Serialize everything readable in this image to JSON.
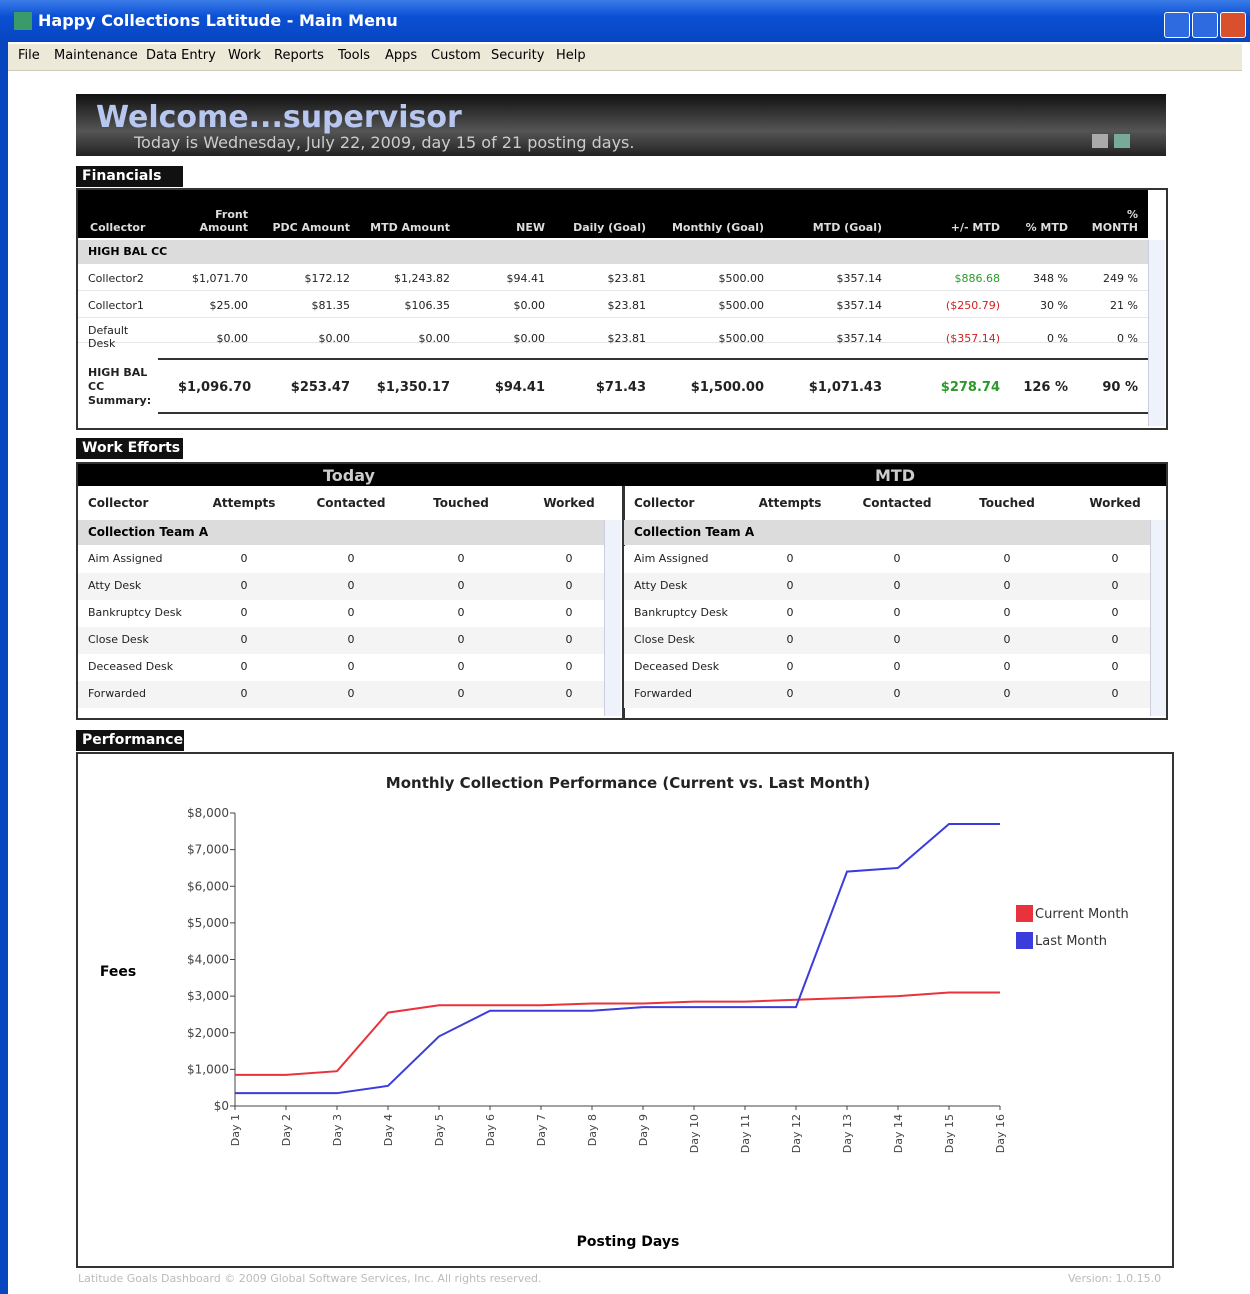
{
  "window": {
    "title": "Happy Collections  Latitude - Main Menu",
    "menu": [
      "File",
      "Maintenance",
      "Data Entry",
      "Work",
      "Reports",
      "Tools",
      "Apps",
      "Custom",
      "Security",
      "Help"
    ]
  },
  "welcome": {
    "title": "Welcome...supervisor",
    "subtitle": "Today is Wednesday, July 22, 2009, day 15 of 21 posting days."
  },
  "financials": {
    "tab": "Financials",
    "columns": [
      "Collector",
      "Front Amount",
      "PDC Amount",
      "MTD Amount",
      "NEW",
      "Daily (Goal)",
      "Monthly (Goal)",
      "MTD (Goal)",
      "+/- MTD",
      "% MTD",
      "% MONTH"
    ],
    "group": "HIGH BAL CC",
    "rows": [
      [
        "Collector2",
        "$1,071.70",
        "$172.12",
        "$1,243.82",
        "$94.41",
        "$23.81",
        "$500.00",
        "$357.14",
        "$886.68",
        "348 %",
        "249 %"
      ],
      [
        "Collector1",
        "$25.00",
        "$81.35",
        "$106.35",
        "$0.00",
        "$23.81",
        "$500.00",
        "$357.14",
        "($250.79)",
        "30 %",
        "21 %"
      ],
      [
        "Default Desk",
        "$0.00",
        "$0.00",
        "$0.00",
        "$0.00",
        "$23.81",
        "$500.00",
        "$357.14",
        "($357.14)",
        "0 %",
        "0 %"
      ]
    ],
    "summary": [
      "HIGH BAL CC Summary:",
      "$1,096.70",
      "$253.47",
      "$1,350.17",
      "$94.41",
      "$71.43",
      "$1,500.00",
      "$1,071.43",
      "$278.74",
      "126 %",
      "90 %"
    ]
  },
  "work_efforts": {
    "tab": "Work Efforts",
    "panels": [
      {
        "title": "Today",
        "columns": [
          "Collector",
          "Attempts",
          "Contacted",
          "Touched",
          "Worked"
        ],
        "group": "Collection Team A",
        "rows": [
          [
            "Aim Assigned",
            0,
            0,
            0,
            0
          ],
          [
            "Atty Desk",
            0,
            0,
            0,
            0
          ],
          [
            "Bankruptcy Desk",
            0,
            0,
            0,
            0
          ],
          [
            "Close Desk",
            0,
            0,
            0,
            0
          ],
          [
            "Deceased Desk",
            0,
            0,
            0,
            0
          ],
          [
            "Forwarded",
            0,
            0,
            0,
            0
          ]
        ]
      },
      {
        "title": "MTD",
        "columns": [
          "Collector",
          "Attempts",
          "Contacted",
          "Touched",
          "Worked"
        ],
        "group": "Collection Team A",
        "rows": [
          [
            "Aim Assigned",
            0,
            0,
            0,
            0
          ],
          [
            "Atty Desk",
            0,
            0,
            0,
            0
          ],
          [
            "Bankruptcy Desk",
            0,
            0,
            0,
            0
          ],
          [
            "Close Desk",
            0,
            0,
            0,
            0
          ],
          [
            "Deceased Desk",
            0,
            0,
            0,
            0
          ],
          [
            "Forwarded",
            0,
            0,
            0,
            0
          ]
        ]
      }
    ]
  },
  "performance": {
    "tab": "Performance"
  },
  "chart_data": {
    "type": "line",
    "title": "Monthly Collection Performance (Current vs. Last Month)",
    "x_label": "Posting Days",
    "y_label": "Fees",
    "categories": [
      "Day 1",
      "Day 2",
      "Day 3",
      "Day 4",
      "Day 5",
      "Day 6",
      "Day 7",
      "Day 8",
      "Day 9",
      "Day 10",
      "Day 11",
      "Day 12",
      "Day 13",
      "Day 14",
      "Day 15",
      "Day 16"
    ],
    "series": [
      {
        "name": "Current Month",
        "color": "#e8323c",
        "values": [
          850,
          850,
          950,
          2550,
          2750,
          2750,
          2750,
          2800,
          2800,
          2850,
          2850,
          2900,
          2950,
          3000,
          3100,
          3100
        ]
      },
      {
        "name": "Last Month",
        "color": "#3c3cdc",
        "values": [
          350,
          350,
          350,
          550,
          1900,
          2600,
          2600,
          2600,
          2700,
          2700,
          2700,
          2700,
          6400,
          6500,
          7700,
          7700
        ]
      }
    ],
    "ylim": [
      0,
      8000
    ],
    "yticks": [
      {
        "value": 0,
        "label": "$0"
      },
      {
        "value": 1000,
        "label": "$1,000"
      },
      {
        "value": 2000,
        "label": "$2,000"
      },
      {
        "value": 3000,
        "label": "$3,000"
      },
      {
        "value": 4000,
        "label": "$4,000"
      },
      {
        "value": 5000,
        "label": "$5,000"
      },
      {
        "value": 6000,
        "label": "$6,000"
      },
      {
        "value": 7000,
        "label": "$7,000"
      },
      {
        "value": 8000,
        "label": "$8,000"
      }
    ],
    "legend": "right",
    "grid": false
  },
  "footer": {
    "left": "Latitude Goals Dashboard © 2009 Global Software Services, Inc. All rights reserved.",
    "right": "Version: 1.0.15.0"
  }
}
